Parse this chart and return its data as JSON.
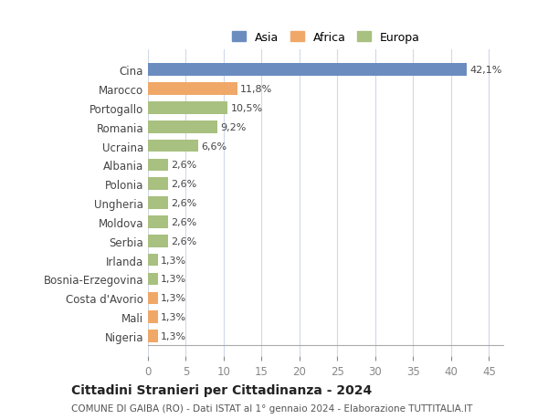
{
  "categories": [
    "Nigeria",
    "Mali",
    "Costa d'Avorio",
    "Bosnia-Erzegovina",
    "Irlanda",
    "Serbia",
    "Moldova",
    "Ungheria",
    "Polonia",
    "Albania",
    "Ucraina",
    "Romania",
    "Portogallo",
    "Marocco",
    "Cina"
  ],
  "values": [
    1.3,
    1.3,
    1.3,
    1.3,
    1.3,
    2.6,
    2.6,
    2.6,
    2.6,
    2.6,
    6.6,
    9.2,
    10.5,
    11.8,
    42.1
  ],
  "labels": [
    "1,3%",
    "1,3%",
    "1,3%",
    "1,3%",
    "1,3%",
    "2,6%",
    "2,6%",
    "2,6%",
    "2,6%",
    "2,6%",
    "6,6%",
    "9,2%",
    "10,5%",
    "11,8%",
    "42,1%"
  ],
  "colors": [
    "#f0a868",
    "#f0a868",
    "#f0a868",
    "#a8c080",
    "#a8c080",
    "#a8c080",
    "#a8c080",
    "#a8c080",
    "#a8c080",
    "#a8c080",
    "#a8c080",
    "#a8c080",
    "#a8c080",
    "#f0a868",
    "#6b8cbf"
  ],
  "legend_labels": [
    "Asia",
    "Africa",
    "Europa"
  ],
  "legend_colors": [
    "#6b8cbf",
    "#f0a868",
    "#a8c080"
  ],
  "xlim": [
    0,
    47
  ],
  "xticks": [
    0,
    5,
    10,
    15,
    20,
    25,
    30,
    35,
    40,
    45
  ],
  "title": "Cittadini Stranieri per Cittadinanza - 2024",
  "subtitle": "COMUNE DI GAIBA (RO) - Dati ISTAT al 1° gennaio 2024 - Elaborazione TUTTITALIA.IT",
  "bg_color": "#ffffff",
  "grid_color": "#d0d8e8",
  "bar_height": 0.65
}
